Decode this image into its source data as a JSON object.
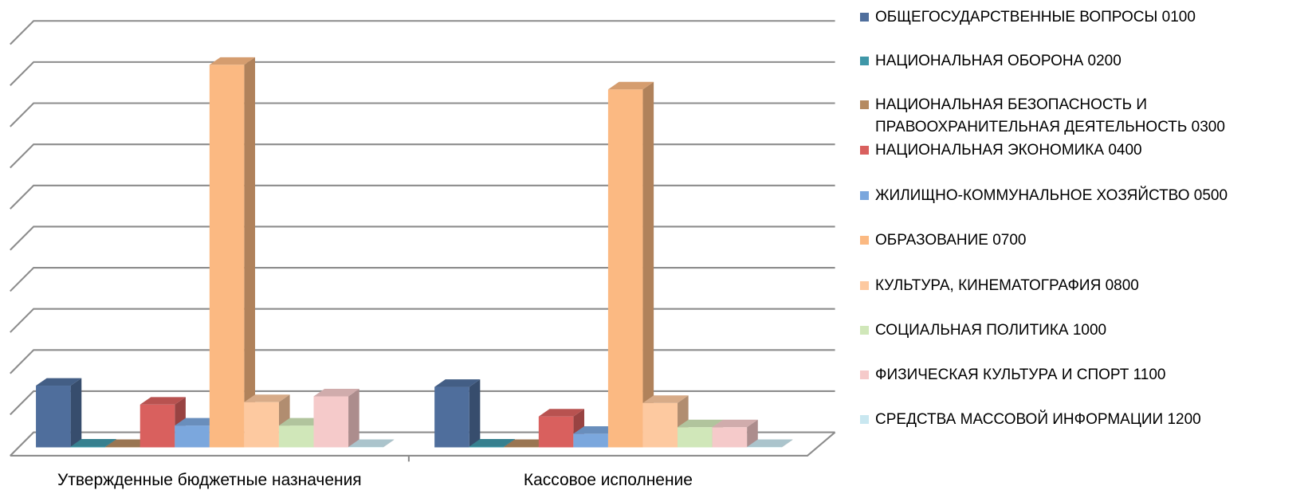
{
  "chart_data": {
    "type": "bar3d",
    "categories": [
      "Утвержденные бюджетные назначения",
      "Кассовое исполнение"
    ],
    "series": [
      {
        "name": "ОБЩЕГОСУДАРСТВЕННЫЕ ВОПРОСЫ 0100",
        "color": "#4f6e9c",
        "values": [
          1.5,
          1.47
        ]
      },
      {
        "name": "НАЦИОНАЛЬНАЯ ОБОРОНА 0200",
        "color": "#3f97a8",
        "values": [
          0.02,
          0.02
        ]
      },
      {
        "name": "НАЦИОНАЛЬНАЯ БЕЗОПАСНОСТЬ И ПРАВООХРАНИТЕЛЬНАЯ ДЕЯТЕЛЬНОСТЬ 0300",
        "color": "#b58a60",
        "values": [
          0.01,
          0.01
        ]
      },
      {
        "name": "НАЦИОНАЛЬНАЯ ЭКОНОМИКА 0400",
        "color": "#d9605e",
        "values": [
          1.04,
          0.75
        ]
      },
      {
        "name": "ЖИЛИЩНО-КОММУНАЛЬНОЕ ХОЗЯЙСТВО 0500",
        "color": "#7ba7dd",
        "values": [
          0.53,
          0.33
        ]
      },
      {
        "name": "ОБРАЗОВАНИЕ 0700",
        "color": "#fbb982",
        "values": [
          9.3,
          8.7
        ]
      },
      {
        "name": "КУЛЬТУРА, КИНЕМАТОГРАФИЯ 0800",
        "color": "#fdc9a0",
        "values": [
          1.1,
          1.08
        ]
      },
      {
        "name": "СОЦИАЛЬНАЯ ПОЛИТИКА 1000",
        "color": "#d0e7b9",
        "values": [
          0.53,
          0.49
        ]
      },
      {
        "name": "ФИЗИЧЕСКАЯ КУЛЬТУРА И СПОРТ 1100",
        "color": "#f5caca",
        "values": [
          1.24,
          0.49
        ]
      },
      {
        "name": "СРЕДСТВА МАССОВОЙ ИНФОРМАЦИИ 1200",
        "color": "#c9e7f0",
        "values": [
          0.01,
          0.01
        ]
      }
    ],
    "ylim": [
      0,
      10
    ],
    "yticks": [
      0,
      1,
      2,
      3,
      4,
      5,
      6,
      7,
      8,
      9,
      10
    ],
    "grid": true
  }
}
